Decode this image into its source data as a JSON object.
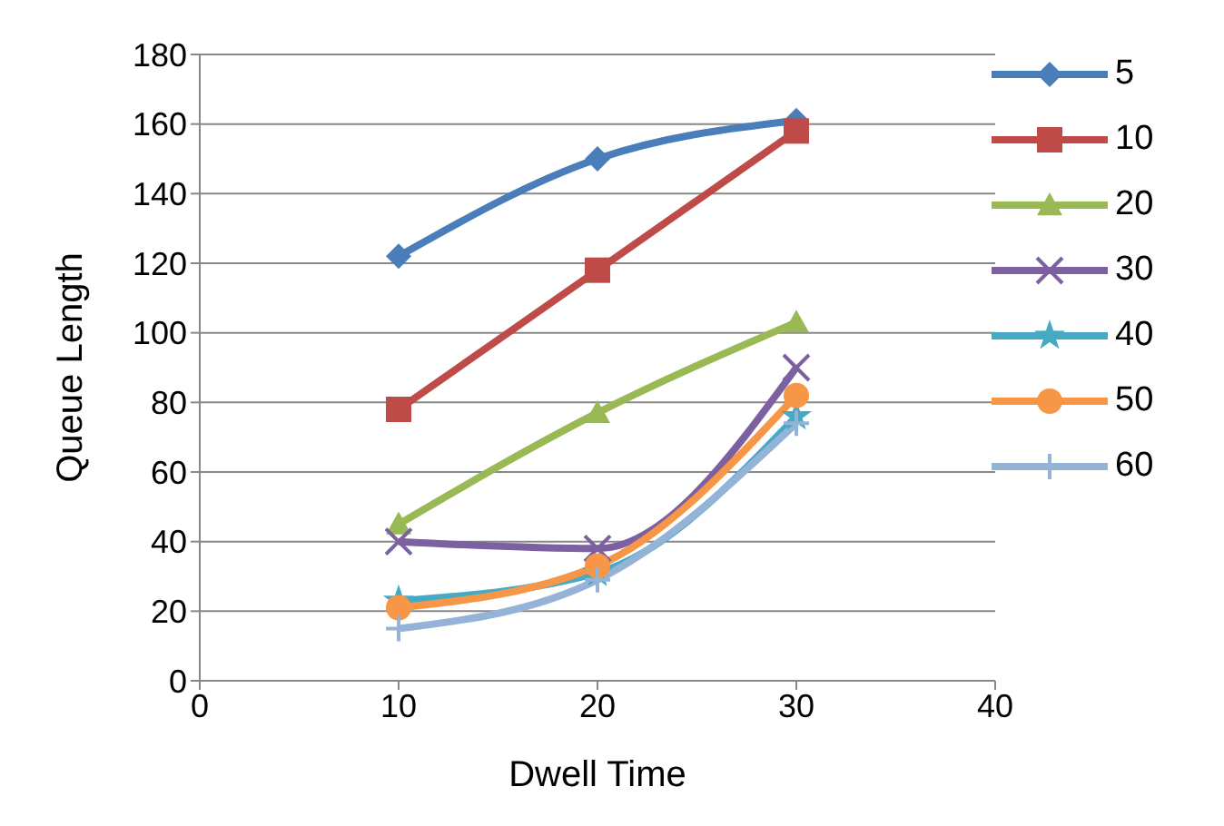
{
  "chart_data": {
    "type": "line",
    "xlabel": "Dwell Time",
    "ylabel": "Queue Length",
    "x": [
      10,
      20,
      30
    ],
    "xlim": [
      0,
      40
    ],
    "xticks": [
      0,
      10,
      20,
      30,
      40
    ],
    "ylim": [
      0,
      180
    ],
    "yticks": [
      0,
      20,
      40,
      60,
      80,
      100,
      120,
      140,
      160,
      180
    ],
    "grid": "y",
    "legend": "right",
    "series": [
      {
        "name": "5",
        "color": "#4a7ebb",
        "marker": "diamond",
        "values": [
          122,
          150,
          161
        ]
      },
      {
        "name": "10",
        "color": "#be4b48",
        "marker": "square",
        "values": [
          78,
          118,
          158
        ]
      },
      {
        "name": "20",
        "color": "#98b954",
        "marker": "triangle",
        "values": [
          45,
          77,
          103
        ]
      },
      {
        "name": "30",
        "color": "#7d60a0",
        "marker": "cross",
        "values": [
          40,
          38,
          90
        ]
      },
      {
        "name": "40",
        "color": "#46aac5",
        "marker": "star",
        "values": [
          23,
          31,
          76
        ]
      },
      {
        "name": "50",
        "color": "#f79646",
        "marker": "circle",
        "values": [
          21,
          33,
          82
        ]
      },
      {
        "name": "60",
        "color": "#95b3d7",
        "marker": "plus",
        "values": [
          15,
          29,
          74
        ]
      }
    ]
  }
}
